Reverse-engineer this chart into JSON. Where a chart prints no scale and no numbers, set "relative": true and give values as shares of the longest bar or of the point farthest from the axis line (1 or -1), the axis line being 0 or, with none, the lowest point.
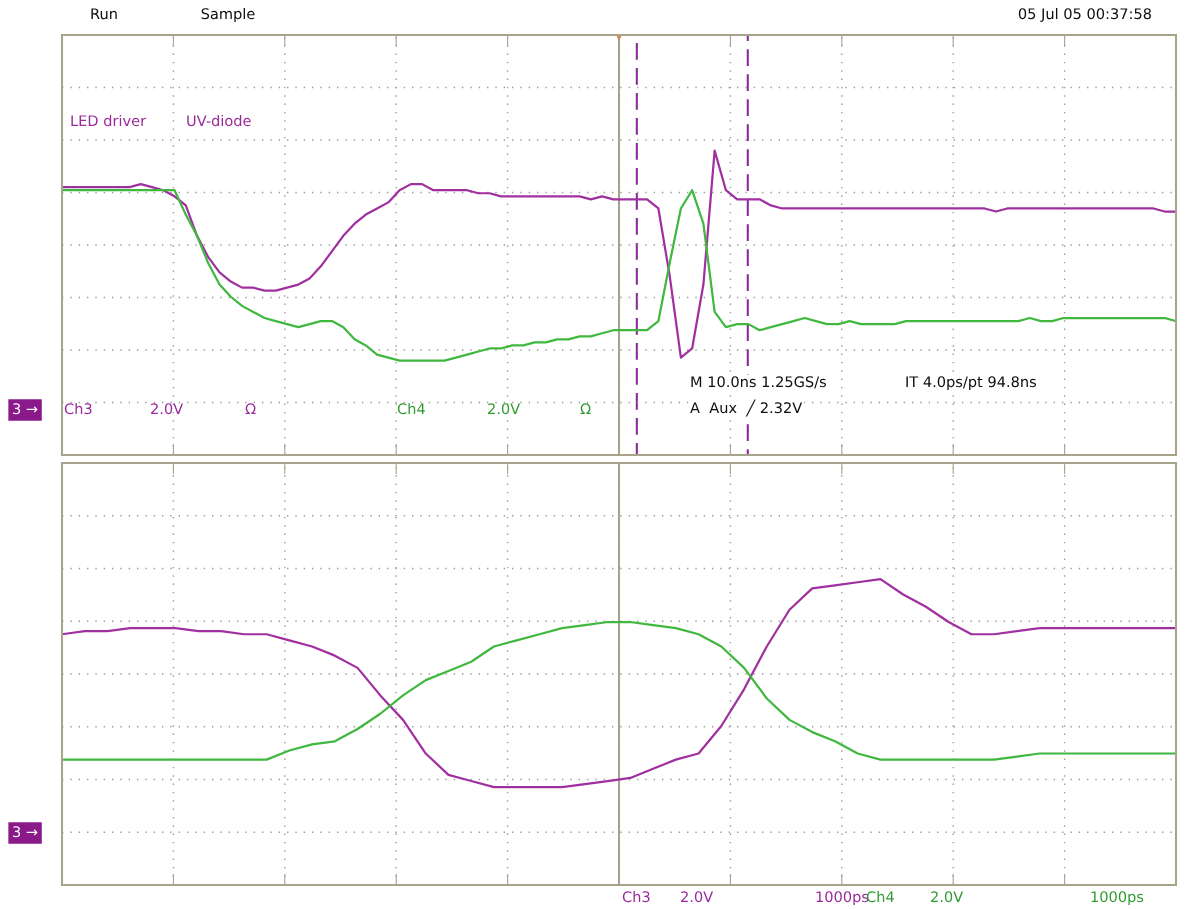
{
  "chart_data": [
    {
      "type": "line",
      "relative": true,
      "grid": true,
      "tick_labels": false,
      "categories": [
        null,
        null,
        null,
        null,
        null,
        null,
        null,
        null,
        null,
        null,
        null,
        null,
        null,
        null,
        null,
        null,
        null,
        null,
        null,
        null,
        null,
        null,
        null,
        null,
        null,
        null,
        null,
        null,
        null,
        null,
        null,
        null,
        null,
        null,
        null,
        null,
        null,
        null,
        null,
        null,
        null,
        null,
        null,
        null,
        null,
        null,
        null,
        null,
        null,
        null,
        null,
        null,
        null,
        null,
        null,
        null,
        null,
        null,
        null,
        null,
        null,
        null,
        null,
        null,
        null,
        null,
        null,
        null,
        null,
        null,
        null,
        null,
        null,
        null,
        null,
        null,
        null,
        null,
        null,
        null,
        null,
        null,
        null,
        null,
        null,
        null,
        null,
        null,
        null,
        null,
        null,
        null,
        null,
        null,
        null,
        null,
        null,
        null,
        null,
        null
      ],
      "series": [
        {
          "color": "#a0309f",
          "values": [
            0.88,
            0.88,
            0.88,
            0.88,
            0.88,
            0.88,
            0.88,
            0.89,
            0.88,
            0.87,
            0.85,
            0.82,
            0.72,
            0.65,
            0.6,
            0.57,
            0.55,
            0.55,
            0.54,
            0.54,
            0.55,
            0.56,
            0.58,
            0.62,
            0.67,
            0.72,
            0.76,
            0.79,
            0.81,
            0.83,
            0.87,
            0.89,
            0.89,
            0.87,
            0.87,
            0.87,
            0.87,
            0.86,
            0.86,
            0.85,
            0.85,
            0.85,
            0.85,
            0.85,
            0.85,
            0.85,
            0.85,
            0.84,
            0.85,
            0.84,
            0.84,
            0.84,
            0.84,
            0.81,
            0.59,
            0.32,
            0.35,
            0.56,
            1.0,
            0.87,
            0.84,
            0.84,
            0.84,
            0.82,
            0.81,
            0.81,
            0.81,
            0.81,
            0.81,
            0.81,
            0.81,
            0.81,
            0.81,
            0.81,
            0.81,
            0.81,
            0.81,
            0.81,
            0.81,
            0.81,
            0.81,
            0.81,
            0.81,
            0.8,
            0.81,
            0.81,
            0.81,
            0.81,
            0.81,
            0.81,
            0.81,
            0.81,
            0.81,
            0.81,
            0.81,
            0.81,
            0.81,
            0.81,
            0.8,
            0.8
          ]
        },
        {
          "color": "#40b840",
          "values": [
            0.87,
            0.87,
            0.87,
            0.87,
            0.87,
            0.87,
            0.87,
            0.87,
            0.87,
            0.87,
            0.87,
            0.79,
            0.72,
            0.63,
            0.56,
            0.52,
            0.49,
            0.47,
            0.45,
            0.44,
            0.43,
            0.42,
            0.43,
            0.44,
            0.44,
            0.42,
            0.38,
            0.36,
            0.33,
            0.32,
            0.31,
            0.31,
            0.31,
            0.31,
            0.31,
            0.32,
            0.33,
            0.34,
            0.35,
            0.35,
            0.36,
            0.36,
            0.37,
            0.37,
            0.38,
            0.38,
            0.39,
            0.39,
            0.4,
            0.41,
            0.41,
            0.41,
            0.41,
            0.44,
            0.63,
            0.81,
            0.87,
            0.76,
            0.47,
            0.42,
            0.43,
            0.43,
            0.41,
            0.42,
            0.43,
            0.44,
            0.45,
            0.44,
            0.43,
            0.43,
            0.44,
            0.43,
            0.43,
            0.43,
            0.43,
            0.44,
            0.44,
            0.44,
            0.44,
            0.44,
            0.44,
            0.44,
            0.44,
            0.44,
            0.44,
            0.44,
            0.45,
            0.44,
            0.44,
            0.45,
            0.45,
            0.45,
            0.45,
            0.45,
            0.45,
            0.45,
            0.45,
            0.45,
            0.45,
            0.44
          ]
        }
      ],
      "annotations": [
        "Run",
        "Sample",
        "05 Jul 05 00:37:58",
        "LED driver",
        "UV-diode",
        "3 →",
        "Ch3",
        "2.0V",
        "Ω",
        "Ch4",
        "2.0V",
        "Ω",
        "M 10.0ns 1.25GS/s",
        "IT 4.0ps/pt 94.8ns",
        "A  Aux  ╱ 2.32V"
      ]
    },
    {
      "type": "line",
      "relative": true,
      "grid": true,
      "tick_labels": false,
      "categories": [
        null,
        null,
        null,
        null,
        null,
        null,
        null,
        null,
        null,
        null,
        null,
        null,
        null,
        null,
        null,
        null,
        null,
        null,
        null,
        null,
        null,
        null,
        null,
        null,
        null,
        null,
        null,
        null,
        null,
        null,
        null,
        null,
        null,
        null,
        null,
        null,
        null,
        null,
        null,
        null,
        null,
        null,
        null,
        null,
        null,
        null,
        null,
        null,
        null,
        null
      ],
      "series": [
        {
          "color": "#a0309f",
          "values": [
            0.82,
            0.83,
            0.83,
            0.84,
            0.84,
            0.84,
            0.83,
            0.83,
            0.82,
            0.82,
            0.8,
            0.78,
            0.75,
            0.71,
            0.62,
            0.54,
            0.43,
            0.36,
            0.34,
            0.32,
            0.32,
            0.32,
            0.32,
            0.33,
            0.34,
            0.35,
            0.38,
            0.41,
            0.43,
            0.52,
            0.64,
            0.78,
            0.9,
            0.97,
            0.98,
            0.99,
            1.0,
            0.95,
            0.91,
            0.86,
            0.82,
            0.82,
            0.83,
            0.84,
            0.84,
            0.84,
            0.84,
            0.84,
            0.84,
            0.84
          ]
        },
        {
          "color": "#40b840",
          "values": [
            0.41,
            0.41,
            0.41,
            0.41,
            0.41,
            0.41,
            0.41,
            0.41,
            0.41,
            0.41,
            0.44,
            0.46,
            0.47,
            0.51,
            0.56,
            0.62,
            0.67,
            0.7,
            0.73,
            0.78,
            0.8,
            0.82,
            0.84,
            0.85,
            0.86,
            0.86,
            0.85,
            0.84,
            0.82,
            0.78,
            0.71,
            0.61,
            0.54,
            0.5,
            0.47,
            0.43,
            0.41,
            0.41,
            0.41,
            0.41,
            0.41,
            0.41,
            0.42,
            0.43,
            0.43,
            0.43,
            0.43,
            0.43,
            0.43,
            0.43
          ]
        }
      ],
      "annotations": [
        "3 →",
        "Ch3",
        "2.0V",
        "1000ps",
        "Ch4",
        "2.0V",
        "1000ps"
      ]
    }
  ]
}
